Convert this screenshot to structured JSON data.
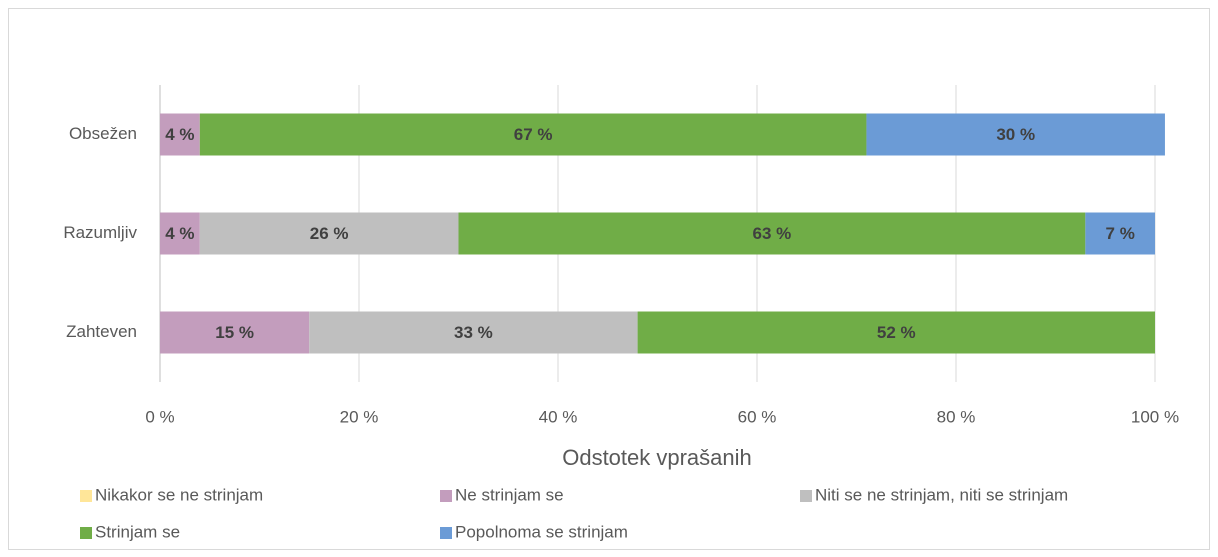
{
  "chart_data": {
    "type": "stacked-bar-horizontal",
    "xlabel": "Odstotek vprašanih",
    "categories": [
      "Obsežen",
      "Razumljiv",
      "Zahteven"
    ],
    "series": [
      {
        "name": "Nikakor se ne strinjam",
        "color": "#ffe699",
        "values": [
          0,
          0,
          0
        ],
        "value_labels": [
          null,
          null,
          null
        ]
      },
      {
        "name": "Ne strinjam se",
        "color": "#c39dbd",
        "values": [
          4,
          4,
          15
        ],
        "value_labels": [
          "4 %",
          "4 %",
          "15 %"
        ]
      },
      {
        "name": "Niti se ne strinjam, niti se strinjam",
        "color": "#bfbfbf",
        "values": [
          0,
          26,
          33
        ],
        "value_labels": [
          null,
          "26 %",
          "33 %"
        ]
      },
      {
        "name": "Strinjam se",
        "color": "#70ad47",
        "values": [
          67,
          63,
          52
        ],
        "value_labels": [
          "67 %",
          "63 %",
          "52 %"
        ]
      },
      {
        "name": "Popolnoma se strinjam",
        "color": "#6b9bd6",
        "values": [
          30,
          7,
          0
        ],
        "value_labels": [
          "30 %",
          "7 %",
          null
        ]
      }
    ],
    "xlim": [
      0,
      100
    ],
    "xticks": [
      {
        "value": 0,
        "label": "0 %"
      },
      {
        "value": 20,
        "label": "20 %"
      },
      {
        "value": 40,
        "label": "40 %"
      },
      {
        "value": 60,
        "label": "60 %"
      },
      {
        "value": 80,
        "label": "80 %"
      },
      {
        "value": 100,
        "label": "100 %"
      }
    ],
    "grid": true,
    "legend": "bottom"
  }
}
